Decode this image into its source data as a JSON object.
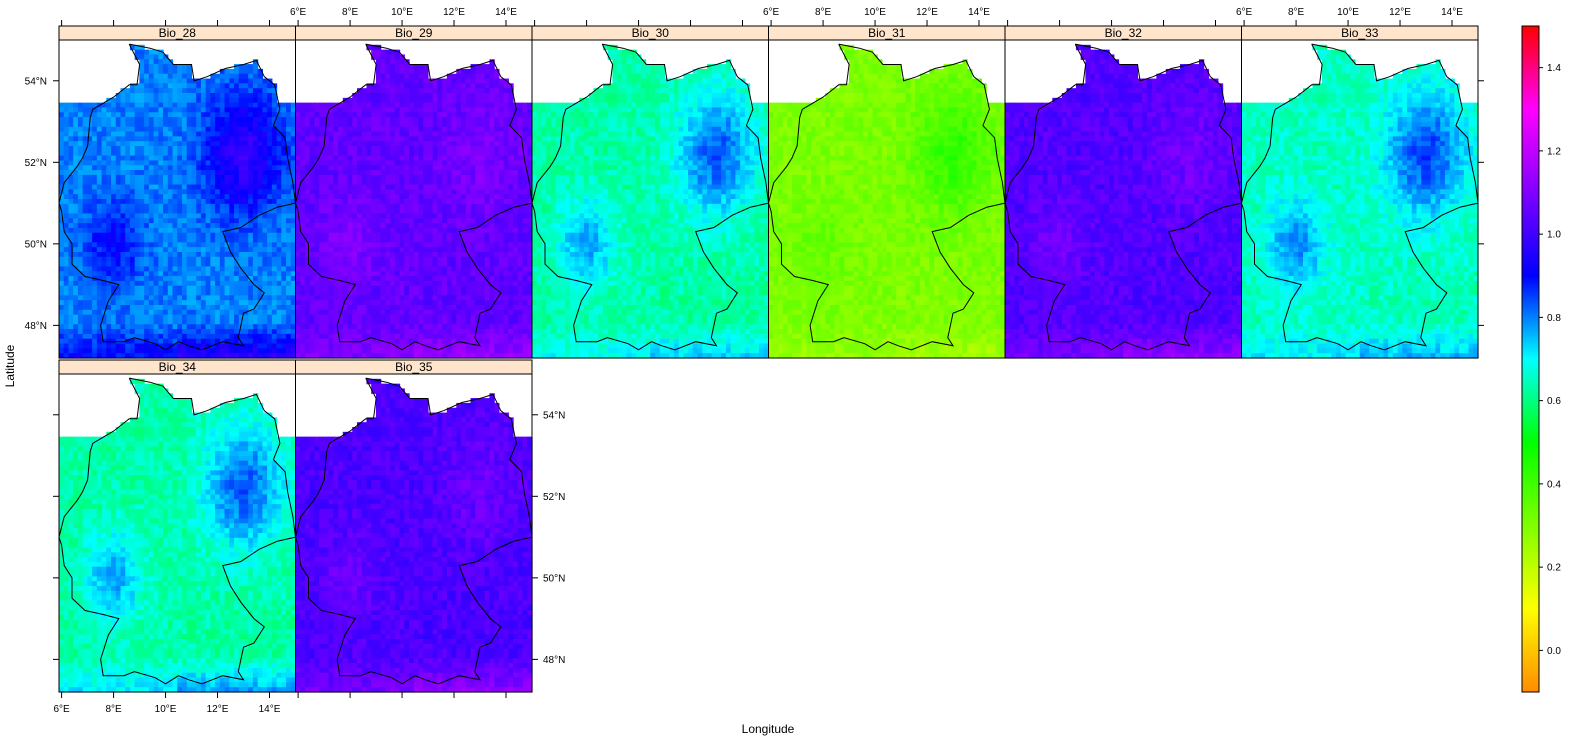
{
  "chart_data": {
    "type": "heatmap",
    "layout": {
      "columns": 6,
      "rows": 2
    },
    "panels": [
      {
        "name": "Bio_28",
        "base": 0.88,
        "gradient": 0.18,
        "oder_boost": 0.1,
        "alps_boost": 0.16
      },
      {
        "name": "Bio_29",
        "base": 1.07,
        "gradient": 0.04,
        "oder_boost": 0.05,
        "alps_boost": 0.08
      },
      {
        "name": "Bio_30",
        "base": 0.72,
        "gradient": 0.2,
        "oder_boost": 0.14,
        "alps_boost": 0.1
      },
      {
        "name": "Bio_31",
        "base": 0.36,
        "gradient": 0.12,
        "oder_boost": 0.04,
        "alps_boost": -0.06
      },
      {
        "name": "Bio_32",
        "base": 1.05,
        "gradient": 0.05,
        "oder_boost": 0.05,
        "alps_boost": 0.09
      },
      {
        "name": "Bio_33",
        "base": 0.74,
        "gradient": 0.2,
        "oder_boost": 0.14,
        "alps_boost": 0.1
      },
      {
        "name": "Bio_34",
        "base": 0.72,
        "gradient": 0.2,
        "oder_boost": 0.14,
        "alps_boost": 0.14
      },
      {
        "name": "Bio_35",
        "base": 1.04,
        "gradient": 0.05,
        "oder_boost": 0.05,
        "alps_boost": 0.1
      }
    ],
    "x_axis": {
      "label": "Longitude",
      "range": [
        5.9,
        15.0
      ],
      "ticks": [
        6,
        8,
        10,
        12,
        14
      ],
      "tick_labels": [
        "6°E",
        "8°E",
        "10°E",
        "12°E",
        "14°E"
      ]
    },
    "y_axis": {
      "label": "Latitude",
      "range": [
        47.2,
        55.0
      ],
      "ticks": [
        48,
        50,
        52,
        54
      ],
      "tick_labels": [
        "48°N",
        "50°N",
        "52°N",
        "54°N"
      ]
    },
    "colorbar": {
      "range": [
        -0.1,
        1.5
      ],
      "ticks": [
        0.0,
        0.2,
        0.4,
        0.6,
        0.8,
        1.0,
        1.2,
        1.4
      ],
      "tick_labels": [
        "0.0",
        "0.2",
        "0.4",
        "0.6",
        "0.8",
        "1.0",
        "1.2",
        "1.4"
      ],
      "palette": [
        "#ff8c00",
        "#ffff00",
        "#80ff00",
        "#00ff00",
        "#00ffff",
        "#0000ff",
        "#8000ff",
        "#ff00ff",
        "#ff0000"
      ]
    },
    "colors": {
      "strip_background": "#ffe5cc",
      "border": "#000000",
      "na_background": "#ffffff"
    },
    "grid": false,
    "legend_placement": "right",
    "overlay": "Germany outline"
  }
}
